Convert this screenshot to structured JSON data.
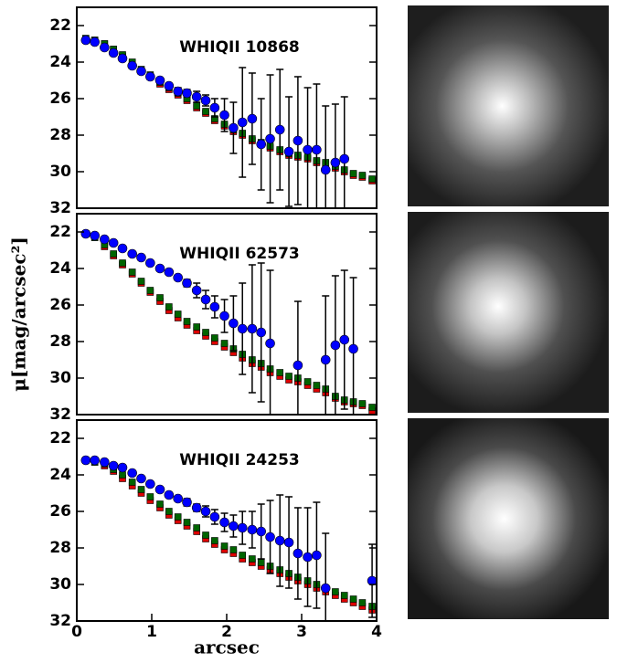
{
  "chart_data": [
    {
      "type": "scatter",
      "title": "WHIQII 10868",
      "xlim": [
        0,
        4
      ],
      "ylim": [
        21,
        32
      ],
      "y_inverted": true,
      "yticks": [
        22,
        24,
        26,
        28,
        30,
        32
      ],
      "x": [
        0.12,
        0.24,
        0.37,
        0.49,
        0.61,
        0.74,
        0.86,
        0.98,
        1.11,
        1.23,
        1.35,
        1.47,
        1.6,
        1.72,
        1.84,
        1.97,
        2.09,
        2.21,
        2.34,
        2.46,
        2.58,
        2.71,
        2.83,
        2.95,
        3.08,
        3.2,
        3.32,
        3.45,
        3.57,
        3.69,
        3.81,
        3.94
      ],
      "series": [
        {
          "name": "red",
          "color": "#dd0000",
          "marker": "square",
          "values": [
            22.8,
            22.8,
            23.0,
            23.3,
            23.7,
            24.1,
            24.5,
            24.8,
            25.2,
            25.5,
            25.8,
            26.1,
            26.5,
            26.8,
            27.2,
            27.5,
            27.8,
            28.0,
            28.3,
            28.5,
            28.7,
            28.9,
            29.1,
            29.2,
            29.3,
            29.5,
            29.6,
            29.8,
            30.0,
            30.2,
            30.3,
            30.5
          ]
        },
        {
          "name": "green",
          "color": "#006400",
          "marker": "square",
          "values": [
            22.7,
            22.8,
            23.0,
            23.3,
            23.6,
            24.0,
            24.4,
            24.7,
            25.1,
            25.4,
            25.7,
            26.0,
            26.4,
            26.7,
            27.1,
            27.4,
            27.7,
            27.9,
            28.2,
            28.4,
            28.6,
            28.8,
            29.0,
            29.1,
            29.2,
            29.4,
            29.5,
            29.7,
            29.9,
            30.1,
            30.2,
            30.4
          ]
        },
        {
          "name": "blue",
          "color": "#0000ff",
          "marker": "circle",
          "values": [
            22.8,
            22.9,
            23.2,
            23.5,
            23.8,
            24.2,
            24.5,
            24.8,
            25.0,
            25.3,
            25.6,
            25.7,
            25.9,
            26.1,
            26.5,
            26.9,
            27.6,
            27.3,
            27.1,
            28.5,
            28.2,
            27.7,
            28.9,
            28.3,
            28.8,
            28.8,
            29.9,
            29.5,
            29.3,
            null,
            null,
            null
          ],
          "errors": [
            0.1,
            0.1,
            0.1,
            0.1,
            0.1,
            0.1,
            0.1,
            0.1,
            0.1,
            0.1,
            0.2,
            0.2,
            0.3,
            0.3,
            0.5,
            0.9,
            1.4,
            3.0,
            2.5,
            2.5,
            3.5,
            3.3,
            3.0,
            3.5,
            3.4,
            3.6,
            3.5,
            3.2,
            3.4,
            null,
            null,
            null
          ]
        }
      ]
    },
    {
      "type": "scatter",
      "title": "WHIQII 62573",
      "ylabel": "μ[mag/arcsec²]",
      "xlim": [
        0,
        4
      ],
      "ylim": [
        21,
        32
      ],
      "y_inverted": true,
      "yticks": [
        22,
        24,
        26,
        28,
        30,
        32
      ],
      "x": [
        0.12,
        0.24,
        0.37,
        0.49,
        0.61,
        0.74,
        0.86,
        0.98,
        1.11,
        1.23,
        1.35,
        1.47,
        1.6,
        1.72,
        1.84,
        1.97,
        2.09,
        2.21,
        2.34,
        2.46,
        2.58,
        2.71,
        2.83,
        2.95,
        3.08,
        3.2,
        3.32,
        3.45,
        3.57,
        3.69,
        3.81,
        3.94
      ],
      "series": [
        {
          "name": "red",
          "color": "#dd0000",
          "marker": "square",
          "values": [
            22.1,
            22.3,
            22.8,
            23.3,
            23.8,
            24.3,
            24.8,
            25.3,
            25.8,
            26.3,
            26.7,
            27.1,
            27.4,
            27.7,
            28.0,
            28.3,
            28.6,
            28.9,
            29.2,
            29.4,
            29.7,
            29.9,
            30.1,
            30.2,
            30.4,
            30.6,
            30.8,
            31.1,
            31.3,
            31.4,
            31.5,
            31.8
          ]
        },
        {
          "name": "green",
          "color": "#006400",
          "marker": "square",
          "values": [
            22.1,
            22.3,
            22.7,
            23.2,
            23.7,
            24.2,
            24.7,
            25.2,
            25.6,
            26.1,
            26.5,
            26.9,
            27.2,
            27.5,
            27.8,
            28.1,
            28.4,
            28.7,
            29.0,
            29.2,
            29.5,
            29.7,
            29.9,
            30.0,
            30.2,
            30.4,
            30.6,
            31.0,
            31.2,
            31.3,
            31.4,
            31.6
          ]
        },
        {
          "name": "blue",
          "color": "#0000ff",
          "marker": "circle",
          "values": [
            22.1,
            22.2,
            22.4,
            22.6,
            22.9,
            23.2,
            23.4,
            23.7,
            24.0,
            24.2,
            24.5,
            24.8,
            25.2,
            25.7,
            26.1,
            26.6,
            27.0,
            27.3,
            27.3,
            27.5,
            28.1,
            null,
            null,
            29.3,
            null,
            null,
            29.0,
            28.2,
            27.9,
            28.4,
            null,
            null
          ],
          "errors": [
            0.1,
            0.1,
            0.1,
            0.1,
            0.1,
            0.1,
            0.1,
            0.1,
            0.1,
            0.1,
            0.1,
            0.2,
            0.4,
            0.5,
            0.6,
            0.9,
            1.5,
            2.5,
            3.5,
            3.8,
            4.0,
            null,
            null,
            3.5,
            null,
            null,
            3.5,
            3.8,
            3.8,
            3.9,
            null,
            null
          ]
        }
      ]
    },
    {
      "type": "scatter",
      "title": "WHIQII 24253",
      "xlabel": "arcsec",
      "xlim": [
        0,
        4
      ],
      "xticks": [
        0,
        1,
        2,
        3,
        4
      ],
      "ylim": [
        21,
        32
      ],
      "y_inverted": true,
      "yticks": [
        22,
        24,
        26,
        28,
        30,
        32
      ],
      "x": [
        0.12,
        0.24,
        0.37,
        0.49,
        0.61,
        0.74,
        0.86,
        0.98,
        1.11,
        1.23,
        1.35,
        1.47,
        1.6,
        1.72,
        1.84,
        1.97,
        2.09,
        2.21,
        2.34,
        2.46,
        2.58,
        2.71,
        2.83,
        2.95,
        3.08,
        3.2,
        3.32,
        3.45,
        3.57,
        3.69,
        3.81,
        3.94
      ],
      "series": [
        {
          "name": "red",
          "color": "#dd0000",
          "marker": "square",
          "values": [
            23.2,
            23.3,
            23.5,
            23.8,
            24.2,
            24.6,
            25.0,
            25.4,
            25.8,
            26.2,
            26.5,
            26.8,
            27.1,
            27.5,
            27.8,
            28.1,
            28.3,
            28.6,
            28.8,
            29.0,
            29.2,
            29.4,
            29.6,
            29.8,
            30.0,
            30.2,
            30.4,
            30.6,
            30.8,
            31.0,
            31.2,
            31.4
          ]
        },
        {
          "name": "green",
          "color": "#006400",
          "marker": "square",
          "values": [
            23.2,
            23.3,
            23.4,
            23.7,
            24.0,
            24.4,
            24.8,
            25.2,
            25.6,
            26.0,
            26.3,
            26.6,
            26.9,
            27.3,
            27.6,
            27.9,
            28.1,
            28.4,
            28.6,
            28.8,
            29.0,
            29.2,
            29.4,
            29.6,
            29.8,
            30.0,
            30.2,
            30.4,
            30.6,
            30.8,
            31.0,
            31.2
          ]
        },
        {
          "name": "blue",
          "color": "#0000ff",
          "marker": "circle",
          "values": [
            23.2,
            23.2,
            23.3,
            23.5,
            23.6,
            23.9,
            24.2,
            24.5,
            24.8,
            25.1,
            25.3,
            25.5,
            25.8,
            26.0,
            26.3,
            26.6,
            26.8,
            26.9,
            27.0,
            27.1,
            27.4,
            27.6,
            27.7,
            28.3,
            28.5,
            28.4,
            30.2,
            null,
            null,
            null,
            null,
            29.8
          ],
          "errors": [
            0.1,
            0.1,
            0.1,
            0.1,
            0.1,
            0.1,
            0.1,
            0.1,
            0.1,
            0.1,
            0.1,
            0.2,
            0.2,
            0.3,
            0.4,
            0.5,
            0.6,
            0.9,
            1.0,
            1.5,
            2.0,
            2.5,
            2.5,
            2.5,
            2.7,
            2.9,
            3.0,
            null,
            null,
            null,
            null,
            2.0
          ]
        }
      ]
    }
  ]
}
